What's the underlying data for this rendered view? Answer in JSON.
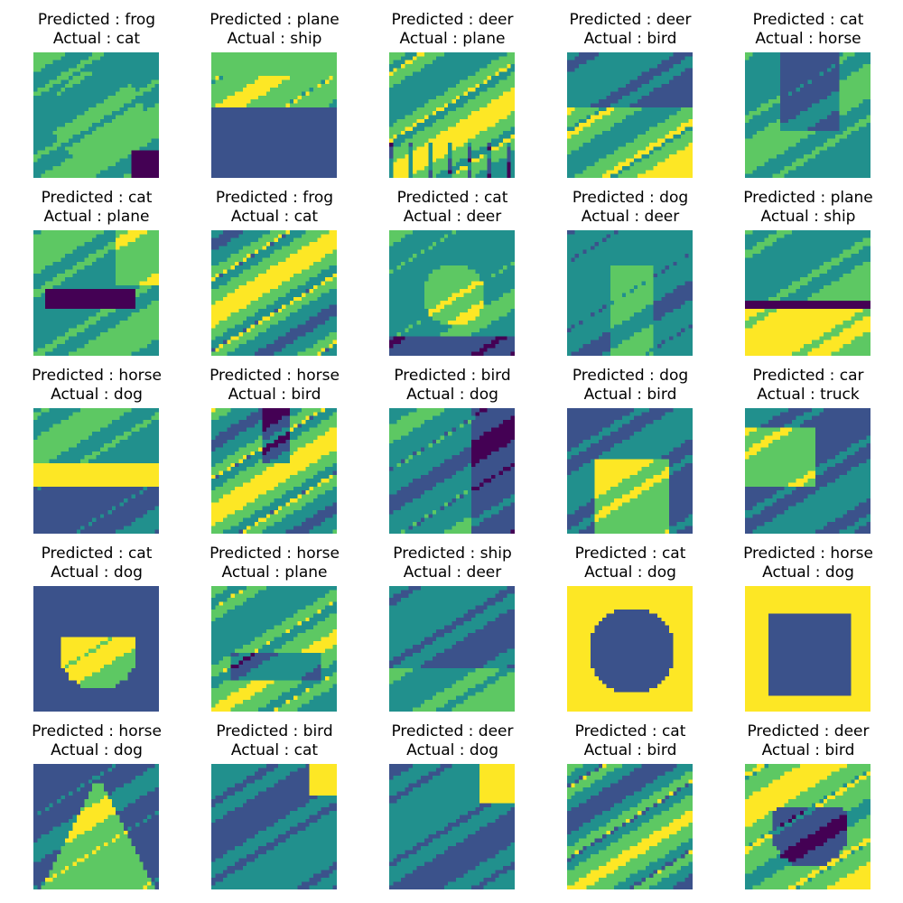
{
  "figure": {
    "colormap": [
      "#440154",
      "#3b528b",
      "#21908d",
      "#5dc863",
      "#fde725"
    ],
    "panels": [
      {
        "predicted": "Predicted : frog",
        "actual": "Actual : cat",
        "scene": "cat-closeup"
      },
      {
        "predicted": "Predicted : plane",
        "actual": "Actual : ship",
        "scene": "ship-water"
      },
      {
        "predicted": "Predicted : deer",
        "actual": "Actual : plane",
        "scene": "plane-trees"
      },
      {
        "predicted": "Predicted : deer",
        "actual": "Actual : bird",
        "scene": "bird-field"
      },
      {
        "predicted": "Predicted : cat",
        "actual": "Actual : horse",
        "scene": "horse-dark"
      },
      {
        "predicted": "Predicted : cat",
        "actual": "Actual : plane",
        "scene": "plane-sky"
      },
      {
        "predicted": "Predicted : frog",
        "actual": "Actual : cat",
        "scene": "cat-texture"
      },
      {
        "predicted": "Predicted : cat",
        "actual": "Actual : deer",
        "scene": "deer-blur"
      },
      {
        "predicted": "Predicted : dog",
        "actual": "Actual : deer",
        "scene": "deer-face"
      },
      {
        "predicted": "Predicted : plane",
        "actual": "Actual : ship",
        "scene": "ship-horizon"
      },
      {
        "predicted": "Predicted : horse",
        "actual": "Actual : dog",
        "scene": "dog-stripe"
      },
      {
        "predicted": "Predicted : horse",
        "actual": "Actual : bird",
        "scene": "bird-reeds"
      },
      {
        "predicted": "Predicted : bird",
        "actual": "Actual : dog",
        "scene": "dog-dark"
      },
      {
        "predicted": "Predicted : dog",
        "actual": "Actual : bird",
        "scene": "bird-frog"
      },
      {
        "predicted": "Predicted : car",
        "actual": "Actual : truck",
        "scene": "truck"
      },
      {
        "predicted": "Predicted : cat",
        "actual": "Actual : dog",
        "scene": "dog-lying"
      },
      {
        "predicted": "Predicted : horse",
        "actual": "Actual : plane",
        "scene": "plane-front"
      },
      {
        "predicted": "Predicted : ship",
        "actual": "Actual : deer",
        "scene": "deer-forest"
      },
      {
        "predicted": "Predicted : cat",
        "actual": "Actual : dog",
        "scene": "dog-bright"
      },
      {
        "predicted": "Predicted : horse",
        "actual": "Actual : dog",
        "scene": "dog-silhouette"
      },
      {
        "predicted": "Predicted : horse",
        "actual": "Actual : dog",
        "scene": "dog-face"
      },
      {
        "predicted": "Predicted : bird",
        "actual": "Actual : cat",
        "scene": "cat-corner"
      },
      {
        "predicted": "Predicted : deer",
        "actual": "Actual : dog",
        "scene": "dog-closeup"
      },
      {
        "predicted": "Predicted : cat",
        "actual": "Actual : bird",
        "scene": "bird-nest"
      },
      {
        "predicted": "Predicted : deer",
        "actual": "Actual : bird",
        "scene": "bird-dark"
      }
    ]
  }
}
